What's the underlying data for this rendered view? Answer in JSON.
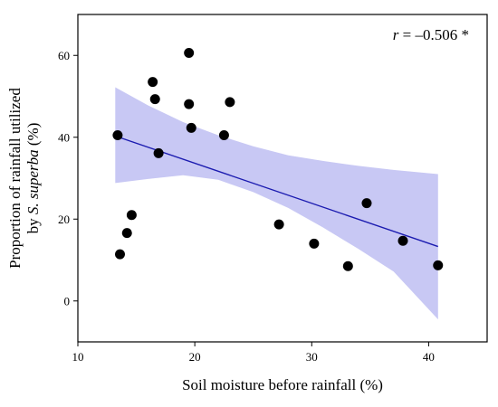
{
  "chart_data": {
    "type": "scatter",
    "xlabel": "Soil moisture before rainfall (%)",
    "ylabel_line1": "Proportion of rainfall utilized",
    "ylabel_line2_prefix": "by ",
    "ylabel_line2_species": "S. superba",
    "ylabel_line2_suffix": " (%)",
    "annotation": {
      "r_symbol": "r",
      "text": " = –0.506 *"
    },
    "xlim": [
      10,
      45
    ],
    "ylim": [
      -10,
      70
    ],
    "xticks": [
      10,
      20,
      30,
      40
    ],
    "yticks": [
      0,
      20,
      40,
      60
    ],
    "points": [
      {
        "x": 13.4,
        "y": 40.5
      },
      {
        "x": 13.6,
        "y": 11.4
      },
      {
        "x": 14.2,
        "y": 16.6
      },
      {
        "x": 14.6,
        "y": 21.0
      },
      {
        "x": 16.4,
        "y": 53.5
      },
      {
        "x": 16.6,
        "y": 49.3
      },
      {
        "x": 16.9,
        "y": 36.1
      },
      {
        "x": 19.5,
        "y": 60.6
      },
      {
        "x": 19.5,
        "y": 48.1
      },
      {
        "x": 19.7,
        "y": 42.3
      },
      {
        "x": 22.5,
        "y": 40.5
      },
      {
        "x": 23.0,
        "y": 48.6
      },
      {
        "x": 27.2,
        "y": 18.7
      },
      {
        "x": 30.2,
        "y": 14.0
      },
      {
        "x": 33.1,
        "y": 8.5
      },
      {
        "x": 34.7,
        "y": 23.9
      },
      {
        "x": 37.8,
        "y": 14.7
      },
      {
        "x": 40.8,
        "y": 8.7
      }
    ],
    "fit_line": {
      "x": [
        13.2,
        40.8
      ],
      "y": [
        40.3,
        13.3
      ],
      "color": "#1b1bb0"
    },
    "confidence_band": {
      "x": [
        13.2,
        16,
        19,
        22,
        25,
        28,
        31,
        34,
        37,
        40.8
      ],
      "upper": [
        52.2,
        47.8,
        43.7,
        40.5,
        37.8,
        35.6,
        34.2,
        33.0,
        32.0,
        31.0
      ],
      "lower": [
        28.8,
        29.8,
        30.7,
        29.6,
        26.6,
        22.7,
        17.9,
        12.7,
        7.2,
        -4.5
      ],
      "color": "#c8c8f4"
    },
    "grid": false,
    "legend": "none"
  }
}
